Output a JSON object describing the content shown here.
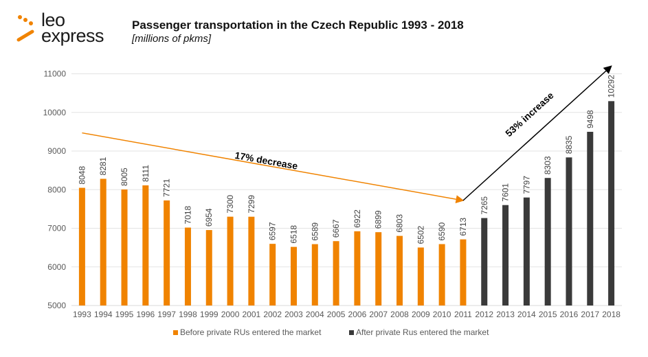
{
  "logo": {
    "line1": "leo",
    "line2": "express",
    "accent": "#f08300"
  },
  "chart_data": {
    "type": "bar",
    "title": "Passenger transportation in the Czech Republic 1993 - 2018",
    "subtitle": "[millions of pkms]",
    "xlabel": "",
    "ylabel": "",
    "ylim": [
      5000,
      11000
    ],
    "yticks": [
      5000,
      6000,
      7000,
      8000,
      9000,
      10000,
      11000
    ],
    "grid": true,
    "legend_position": "bottom",
    "categories": [
      "1993",
      "1994",
      "1995",
      "1996",
      "1997",
      "1998",
      "1999",
      "2000",
      "2001",
      "2002",
      "2003",
      "2004",
      "2005",
      "2006",
      "2007",
      "2008",
      "2009",
      "2010",
      "2011",
      "2012",
      "2013",
      "2014",
      "2015",
      "2016",
      "2017",
      "2018"
    ],
    "series": [
      {
        "name": "Before private RUs entered the market",
        "color": "#f08300",
        "values": [
          8048,
          8281,
          8005,
          8111,
          7721,
          7018,
          6954,
          7300,
          7299,
          6597,
          6518,
          6589,
          6667,
          6922,
          6899,
          6803,
          6502,
          6590,
          6713,
          null,
          null,
          null,
          null,
          null,
          null,
          null
        ]
      },
      {
        "name": "After private Rus entered the market",
        "color": "#3a3a3a",
        "values": [
          null,
          null,
          null,
          null,
          null,
          null,
          null,
          null,
          null,
          null,
          null,
          null,
          null,
          null,
          null,
          null,
          null,
          null,
          null,
          7265,
          7601,
          7797,
          8303,
          8835,
          9498,
          10292
        ]
      }
    ],
    "annotations": [
      {
        "text": "17% decrease",
        "color": "#f08300",
        "from": {
          "x": "1993",
          "y": 9470
        },
        "to": {
          "x": "2011",
          "y": 7720
        }
      },
      {
        "text": "53% increase",
        "color": "#000000",
        "from": {
          "x": "2011",
          "y": 7720
        },
        "to": {
          "x": "2018",
          "y": 11200
        }
      }
    ]
  }
}
